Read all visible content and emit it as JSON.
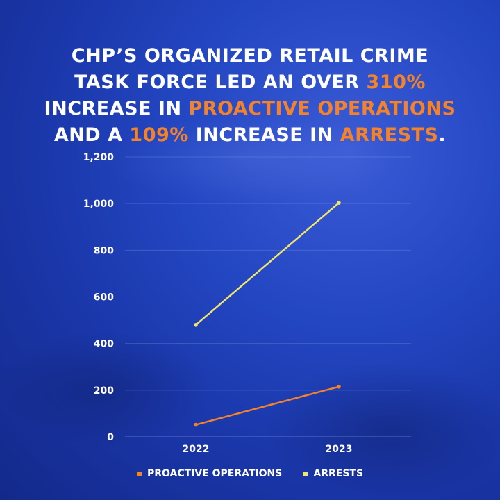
{
  "title": {
    "part1": "CHP’S ORGANIZED RETAIL CRIME TASK FORCE LED AN OVER ",
    "highlight1": "310%",
    "part2": " INCREASE IN ",
    "highlight2": "PROACTIVE OPERATIONS",
    "part3": " AND A ",
    "highlight3": "109%",
    "part4": " INCREASE IN ",
    "highlight4": "ARRESTS",
    "part5": "."
  },
  "colors": {
    "accent": "#f4822a",
    "arrests_line": "#f2e56a",
    "proactive_line": "#f4822a",
    "grid": "#7f95e0"
  },
  "chart_data": {
    "type": "line",
    "title": "CHP’S ORGANIZED RETAIL CRIME TASK FORCE LED AN OVER 310% INCREASE IN PROACTIVE OPERATIONS AND A 109% INCREASE IN ARRESTS.",
    "categories": [
      "2022",
      "2023"
    ],
    "series": [
      {
        "name": "PROACTIVE OPERATIONS",
        "values": [
          52,
          215
        ],
        "color": "#f4822a"
      },
      {
        "name": "ARRESTS",
        "values": [
          480,
          1003
        ],
        "color": "#f2e56a"
      }
    ],
    "yticks": [
      "0",
      "200",
      "400",
      "600",
      "800",
      "1,000",
      "1,200"
    ],
    "ylim": [
      0,
      1200
    ],
    "grid": true,
    "legend": "bottom"
  }
}
